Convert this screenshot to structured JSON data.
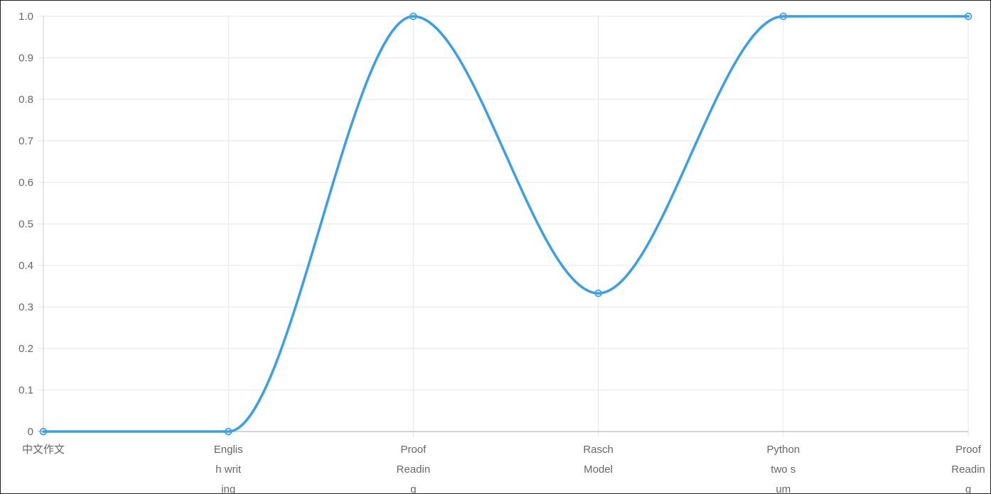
{
  "chart_data": {
    "type": "line",
    "title": "",
    "xlabel": "",
    "ylabel": "",
    "categories": [
      [
        "中文作文"
      ],
      [
        "Englis",
        "h writ",
        "ing"
      ],
      [
        "Proof",
        "Readin",
        "g"
      ],
      [
        "Rasch",
        "Model"
      ],
      [
        "Python",
        "two s",
        "um"
      ],
      [
        "Proof",
        "Readin",
        "g"
      ]
    ],
    "series": [
      {
        "values": [
          0,
          0,
          1.0,
          0.333,
          1.0,
          1.0
        ]
      }
    ],
    "ylim": [
      0,
      1.0
    ],
    "yticks": [
      "1.0",
      "0.9",
      "0.8",
      "0.7",
      "0.6",
      "0.5",
      "0.4",
      "0.3",
      "0.2",
      "0.1",
      "0"
    ],
    "grid": true,
    "line_color": "#3a9fe5",
    "curve": "smooth"
  }
}
